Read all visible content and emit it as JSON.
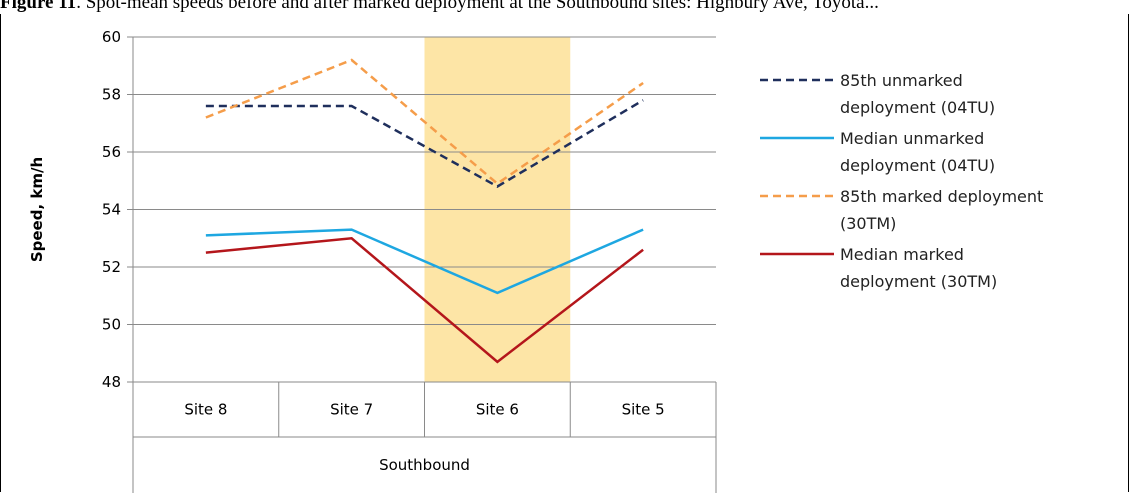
{
  "caption": {
    "prefix": "Figure 11",
    "rest": ". Spot-mean speeds before and after marked deployment at the Southbound sites: Highbury Ave, Toyota..."
  },
  "chart_data": {
    "type": "line",
    "categories": [
      "Site 8",
      "Site 7",
      "Site 6",
      "Site 5"
    ],
    "group_label": "Southbound",
    "xlabel": "",
    "ylabel": "Speed, km/h",
    "ylim": [
      48,
      60
    ],
    "yticks": [
      48,
      50,
      52,
      54,
      56,
      58,
      60
    ],
    "grid": true,
    "highlight_category": "Site 6",
    "highlight_color": "#fde5a6",
    "legend_position": "right",
    "series": [
      {
        "name": "85th unmarked deployment (04TU)",
        "legend_lines": [
          "85th unmarked",
          "deployment (04TU)"
        ],
        "values": [
          57.6,
          57.6,
          54.8,
          57.8
        ],
        "color": "#1f2f5c",
        "dash": "8,5",
        "width": 2.5
      },
      {
        "name": "Median unmarked deployment (04TU)",
        "legend_lines": [
          "Median unmarked",
          "deployment (04TU)"
        ],
        "values": [
          53.1,
          53.3,
          51.1,
          53.3
        ],
        "color": "#1ea7e1",
        "dash": "",
        "width": 2.5
      },
      {
        "name": "85th marked deployment (30TM)",
        "legend_lines": [
          "85th marked deployment",
          "(30TM)"
        ],
        "values": [
          57.2,
          59.2,
          54.9,
          58.4
        ],
        "color": "#f59d4a",
        "dash": "8,5",
        "width": 2.5
      },
      {
        "name": "Median marked deployment (30TM)",
        "legend_lines": [
          "Median marked",
          "deployment (30TM)"
        ],
        "values": [
          52.5,
          53.0,
          48.7,
          52.6
        ],
        "color": "#b4161b",
        "dash": "",
        "width": 2.5
      }
    ]
  }
}
